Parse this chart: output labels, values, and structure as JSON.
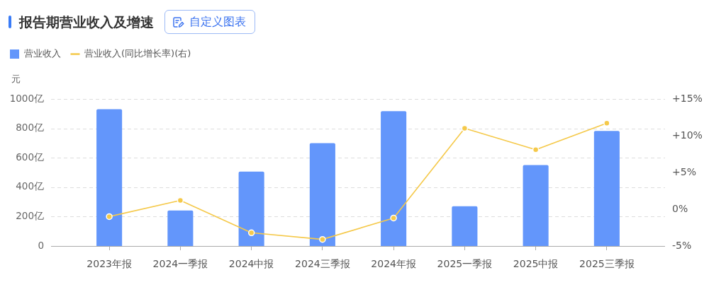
{
  "chart_data": {
    "type": "bar",
    "title": "报告期营业收入及增速",
    "annotations": [
      "自定义图表"
    ],
    "ylabel": "元",
    "categories": [
      "2023年报",
      "2024一季报",
      "2024中报",
      "2024三季报",
      "2024年报",
      "2025一季报",
      "2025中报",
      "2025三季报"
    ],
    "series": [
      {
        "name": "营业收入",
        "color": "#6396fb",
        "values": [
          930,
          242,
          506,
          699,
          917,
          271,
          550,
          782
        ]
      },
      {
        "name": "营业收入(同比增长率)(右)",
        "type": "line",
        "axis": "y2",
        "color": "#f5c94a",
        "values": [
          -1.0,
          1.2,
          -3.2,
          -4.1,
          -1.2,
          11.0,
          8.1,
          11.7
        ]
      }
    ],
    "ylim": [
      0,
      1000
    ],
    "yticks": [
      0,
      {
        "value": 200,
        "label": "200亿"
      },
      {
        "value": 400,
        "label": "400亿"
      },
      {
        "value": 600,
        "label": "600亿"
      },
      {
        "value": 800,
        "label": "800亿"
      },
      {
        "value": 1000,
        "label": "1000亿"
      }
    ],
    "y2lim": [
      -5,
      15
    ],
    "y2ticks": [
      {
        "value": -5,
        "label": "-5%"
      },
      {
        "value": 0,
        "label": "0%"
      },
      {
        "value": 5,
        "label": "+5%"
      },
      {
        "value": 10,
        "label": "+10%"
      },
      {
        "value": 15,
        "label": "+15%"
      }
    ],
    "grid": "y",
    "legend": "top left",
    "marker": "circle"
  }
}
